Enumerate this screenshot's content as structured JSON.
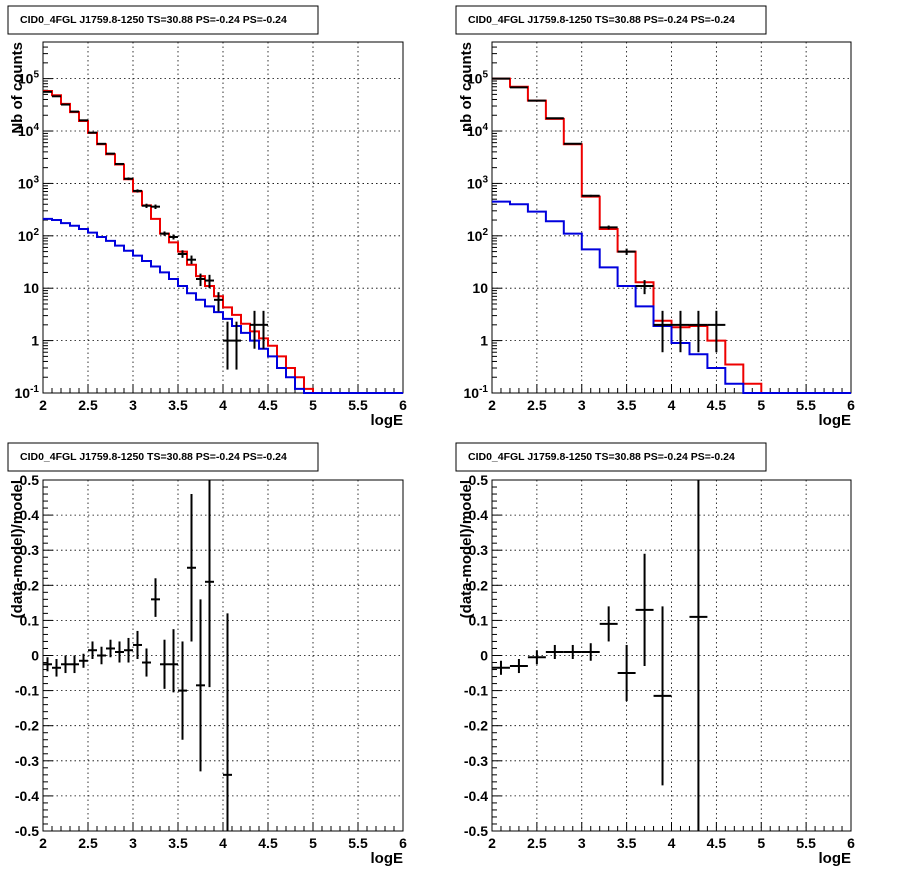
{
  "colors": {
    "data": "#000000",
    "total_model": "#ee0000",
    "component_model": "#0000dd"
  },
  "chart_data": [
    {
      "type": "histogram",
      "title": "CID0_4FGL J1759.8-1250 TS=30.88 PS=-0.24 PS=-0.24",
      "xlabel": "logE",
      "ylabel": "Nb of counts",
      "xlim": [
        2,
        6
      ],
      "ylim": [
        0.1,
        500000
      ],
      "yscale": "log",
      "grid": true,
      "xticks": [
        2,
        2.5,
        3,
        3.5,
        4,
        4.5,
        5,
        5.5,
        6
      ],
      "xticklabels": [
        "2",
        "2.5",
        "3",
        "3.5",
        "4",
        "4.5",
        "5",
        "5.5",
        "6"
      ],
      "yticks": [
        0.1,
        1,
        10,
        100,
        1000,
        10000,
        100000
      ],
      "yticklabels": [
        "10^-1",
        "1",
        "10",
        "10^2",
        "10^3",
        "10^4",
        "10^5"
      ],
      "bin_edges": [
        2.0,
        2.1,
        2.2,
        2.3,
        2.4,
        2.5,
        2.6,
        2.7,
        2.8,
        2.9,
        3.0,
        3.1,
        3.2,
        3.3,
        3.4,
        3.5,
        3.6,
        3.7,
        3.8,
        3.9,
        4.0,
        4.1,
        4.2,
        4.3,
        4.4,
        4.5,
        4.6,
        4.7,
        4.8,
        4.9,
        5.0,
        5.1,
        5.2,
        5.3,
        5.4,
        5.5,
        5.6,
        5.7,
        5.8,
        5.9,
        6.0
      ],
      "series": [
        {
          "role": "total_model",
          "values": [
            58000,
            48000,
            33000,
            23000,
            15500,
            9200,
            5600,
            3600,
            2300,
            1200,
            700,
            380,
            210,
            110,
            75,
            50,
            28,
            17,
            11,
            7,
            4.3,
            3.1,
            2.1,
            1.5,
            1.1,
            0.8,
            0.5,
            0.3,
            0.2,
            0.12,
            0.1,
            0.1,
            0.1,
            0.1,
            0.1,
            0.1,
            0.1,
            0.1,
            0.1,
            0.1
          ]
        },
        {
          "role": "component_model",
          "values": [
            210,
            200,
            175,
            155,
            135,
            115,
            95,
            80,
            65,
            52,
            42,
            33,
            26,
            20,
            15,
            11,
            8,
            6,
            4.5,
            3.5,
            2.6,
            1.9,
            1.4,
            1.0,
            0.7,
            0.5,
            0.3,
            0.2,
            0.12,
            0.1,
            0.1,
            0.1,
            0.1,
            0.1,
            0.1,
            0.1,
            0.1,
            0.1,
            0.1,
            0.1
          ]
        }
      ],
      "points": [
        {
          "x": 2.05,
          "y": 56000,
          "ylo": 55500,
          "yhi": 56500
        },
        {
          "x": 2.15,
          "y": 46000,
          "ylo": 45500,
          "yhi": 46500
        },
        {
          "x": 2.25,
          "y": 32000,
          "ylo": 31600,
          "yhi": 32400
        },
        {
          "x": 2.35,
          "y": 23500,
          "ylo": 23200,
          "yhi": 23800
        },
        {
          "x": 2.45,
          "y": 16000,
          "ylo": 15700,
          "yhi": 16300
        },
        {
          "x": 2.55,
          "y": 9300,
          "ylo": 9100,
          "yhi": 9500
        },
        {
          "x": 2.65,
          "y": 5700,
          "ylo": 5550,
          "yhi": 5850
        },
        {
          "x": 2.75,
          "y": 3700,
          "ylo": 3580,
          "yhi": 3820
        },
        {
          "x": 2.85,
          "y": 2350,
          "ylo": 2250,
          "yhi": 2450
        },
        {
          "x": 2.95,
          "y": 1230,
          "ylo": 1160,
          "yhi": 1300
        },
        {
          "x": 3.05,
          "y": 720,
          "ylo": 670,
          "yhi": 770
        },
        {
          "x": 3.15,
          "y": 375,
          "ylo": 340,
          "yhi": 410
        },
        {
          "x": 3.25,
          "y": 360,
          "ylo": 325,
          "yhi": 395
        },
        {
          "x": 3.35,
          "y": 110,
          "ylo": 100,
          "yhi": 121
        },
        {
          "x": 3.45,
          "y": 95,
          "ylo": 85,
          "yhi": 106
        },
        {
          "x": 3.55,
          "y": 45,
          "ylo": 38,
          "yhi": 53
        },
        {
          "x": 3.65,
          "y": 35,
          "ylo": 29,
          "yhi": 42
        },
        {
          "x": 3.75,
          "y": 15,
          "ylo": 11,
          "yhi": 19
        },
        {
          "x": 3.85,
          "y": 14,
          "ylo": 10,
          "yhi": 18
        },
        {
          "x": 3.95,
          "y": 6,
          "ylo": 3.6,
          "yhi": 8.4
        },
        {
          "x": 4.05,
          "y": 1,
          "ylo": 0.28,
          "yhi": 2.3
        },
        {
          "x": 4.15,
          "y": 1,
          "ylo": 0.28,
          "yhi": 2.3
        },
        {
          "x": 4.35,
          "y": 2,
          "ylo": 0.7,
          "yhi": 3.7
        },
        {
          "x": 4.45,
          "y": 2,
          "ylo": 0.7,
          "yhi": 3.7
        }
      ],
      "point_halfwidth": 0.05
    },
    {
      "type": "histogram",
      "title": "CID0_4FGL J1759.8-1250 TS=30.88 PS=-0.24 PS=-0.24",
      "xlabel": "logE",
      "ylabel": "nb of counts",
      "xlim": [
        2,
        6
      ],
      "ylim": [
        0.1,
        500000
      ],
      "yscale": "log",
      "grid": true,
      "xticks": [
        2,
        2.5,
        3,
        3.5,
        4,
        4.5,
        5,
        5.5,
        6
      ],
      "xticklabels": [
        "2",
        "2.5",
        "3",
        "3.5",
        "4",
        "4.5",
        "5",
        "5.5",
        "6"
      ],
      "yticks": [
        0.1,
        1,
        10,
        100,
        1000,
        10000,
        100000
      ],
      "yticklabels": [
        "10^-1",
        "1",
        "10",
        "10^2",
        "10^3",
        "10^4",
        "10^5"
      ],
      "bin_edges": [
        2.0,
        2.2,
        2.4,
        2.6,
        2.8,
        3.0,
        3.2,
        3.4,
        3.6,
        3.8,
        4.0,
        4.2,
        4.4,
        4.6,
        4.8,
        5.0,
        5.2,
        5.4,
        5.6,
        5.8,
        6.0
      ],
      "series": [
        {
          "role": "total_model",
          "values": [
            100000,
            70000,
            38000,
            17000,
            5600,
            560,
            135,
            50,
            13,
            2.4,
            1.8,
            1.9,
            1.0,
            0.35,
            0.15,
            0.1,
            0.1,
            0.1,
            0.1,
            0.1
          ]
        },
        {
          "role": "component_model",
          "values": [
            450,
            400,
            290,
            190,
            110,
            55,
            25,
            11,
            4.5,
            1.9,
            0.9,
            0.55,
            0.3,
            0.15,
            0.1,
            0.1,
            0.1,
            0.1,
            0.1,
            0.1
          ]
        }
      ],
      "points": [
        {
          "x": 2.1,
          "y": 100000,
          "ylo": 99500,
          "yhi": 100500
        },
        {
          "x": 2.3,
          "y": 68000,
          "ylo": 67600,
          "yhi": 68400
        },
        {
          "x": 2.5,
          "y": 38000,
          "ylo": 37700,
          "yhi": 38300
        },
        {
          "x": 2.7,
          "y": 17500,
          "ylo": 17300,
          "yhi": 17700
        },
        {
          "x": 2.9,
          "y": 5700,
          "ylo": 5600,
          "yhi": 5800
        },
        {
          "x": 3.1,
          "y": 580,
          "ylo": 555,
          "yhi": 605
        },
        {
          "x": 3.3,
          "y": 145,
          "ylo": 133,
          "yhi": 157
        },
        {
          "x": 3.5,
          "y": 50,
          "ylo": 43,
          "yhi": 57
        },
        {
          "x": 3.7,
          "y": 11,
          "ylo": 7.7,
          "yhi": 14.3
        },
        {
          "x": 3.9,
          "y": 2,
          "ylo": 0.6,
          "yhi": 3.7
        },
        {
          "x": 4.1,
          "y": 2,
          "ylo": 0.6,
          "yhi": 3.7
        },
        {
          "x": 4.3,
          "y": 2,
          "ylo": 0.6,
          "yhi": 3.7
        },
        {
          "x": 4.5,
          "y": 2,
          "ylo": 0.6,
          "yhi": 3.7
        }
      ],
      "point_halfwidth": 0.1
    },
    {
      "type": "scatter",
      "title": "CID0_4FGL J1759.8-1250 TS=30.88 PS=-0.24 PS=-0.24",
      "xlabel": "logE",
      "ylabel": "(data-model)/model",
      "xlim": [
        2,
        6
      ],
      "ylim": [
        -0.5,
        0.5
      ],
      "yscale": "linear",
      "grid": true,
      "xticks": [
        2,
        2.5,
        3,
        3.5,
        4,
        4.5,
        5,
        5.5,
        6
      ],
      "xticklabels": [
        "2",
        "2.5",
        "3",
        "3.5",
        "4",
        "4.5",
        "5",
        "5.5",
        "6"
      ],
      "yticks": [
        -0.5,
        -0.4,
        -0.3,
        -0.2,
        -0.1,
        0,
        0.1,
        0.2,
        0.3,
        0.4,
        0.5
      ],
      "yticklabels": [
        "-0.5",
        "-0.4",
        "-0.3",
        "-0.2",
        "-0.1",
        "0",
        "0.1",
        "0.2",
        "0.3",
        "0.4",
        "0.5"
      ],
      "points": [
        {
          "x": 2.05,
          "y": -0.025,
          "ylo": -0.045,
          "yhi": -0.005
        },
        {
          "x": 2.15,
          "y": -0.035,
          "ylo": -0.06,
          "yhi": -0.01
        },
        {
          "x": 2.25,
          "y": -0.025,
          "ylo": -0.05,
          "yhi": 0.0
        },
        {
          "x": 2.35,
          "y": -0.025,
          "ylo": -0.05,
          "yhi": 0.0
        },
        {
          "x": 2.45,
          "y": -0.015,
          "ylo": -0.035,
          "yhi": 0.005
        },
        {
          "x": 2.55,
          "y": 0.015,
          "ylo": -0.01,
          "yhi": 0.04
        },
        {
          "x": 2.65,
          "y": 0.0,
          "ylo": -0.025,
          "yhi": 0.025
        },
        {
          "x": 2.75,
          "y": 0.02,
          "ylo": -0.005,
          "yhi": 0.045
        },
        {
          "x": 2.85,
          "y": 0.01,
          "ylo": -0.02,
          "yhi": 0.04
        },
        {
          "x": 2.95,
          "y": 0.015,
          "ylo": -0.02,
          "yhi": 0.05
        },
        {
          "x": 3.05,
          "y": 0.03,
          "ylo": -0.01,
          "yhi": 0.07
        },
        {
          "x": 3.15,
          "y": -0.02,
          "ylo": -0.06,
          "yhi": 0.02
        },
        {
          "x": 3.25,
          "y": 0.16,
          "ylo": 0.11,
          "yhi": 0.22
        },
        {
          "x": 3.35,
          "y": -0.025,
          "ylo": -0.095,
          "yhi": 0.045
        },
        {
          "x": 3.45,
          "y": -0.025,
          "ylo": -0.105,
          "yhi": 0.075
        },
        {
          "x": 3.55,
          "y": -0.1,
          "ylo": -0.24,
          "yhi": 0.04
        },
        {
          "x": 3.65,
          "y": 0.25,
          "ylo": 0.04,
          "yhi": 0.46
        },
        {
          "x": 3.75,
          "y": -0.085,
          "ylo": -0.33,
          "yhi": 0.16
        },
        {
          "x": 3.85,
          "y": 0.21,
          "ylo": -0.09,
          "yhi": 0.5
        },
        {
          "x": 4.05,
          "y": -0.34,
          "ylo": -0.5,
          "yhi": 0.12
        }
      ],
      "point_halfwidth": 0.05
    },
    {
      "type": "scatter",
      "title": "CID0_4FGL J1759.8-1250 TS=30.88 PS=-0.24 PS=-0.24",
      "xlabel": "logE",
      "ylabel": "(data-model)/model",
      "xlim": [
        2,
        6
      ],
      "ylim": [
        -0.5,
        0.5
      ],
      "yscale": "linear",
      "grid": true,
      "xticks": [
        2,
        2.5,
        3,
        3.5,
        4,
        4.5,
        5,
        5.5,
        6
      ],
      "xticklabels": [
        "2",
        "2.5",
        "3",
        "3.5",
        "4",
        "4.5",
        "5",
        "5.5",
        "6"
      ],
      "yticks": [
        -0.5,
        -0.4,
        -0.3,
        -0.2,
        -0.1,
        0,
        0.1,
        0.2,
        0.3,
        0.4,
        0.5
      ],
      "yticklabels": [
        "-0.5",
        "-0.4",
        "-0.3",
        "-0.2",
        "-0.1",
        "0",
        "0.1",
        "0.2",
        "0.3",
        "0.4",
        "0.5"
      ],
      "points": [
        {
          "x": 2.1,
          "y": -0.035,
          "ylo": -0.055,
          "yhi": -0.015
        },
        {
          "x": 2.3,
          "y": -0.03,
          "ylo": -0.05,
          "yhi": -0.01
        },
        {
          "x": 2.5,
          "y": -0.005,
          "ylo": -0.025,
          "yhi": 0.015
        },
        {
          "x": 2.7,
          "y": 0.01,
          "ylo": -0.01,
          "yhi": 0.03
        },
        {
          "x": 2.9,
          "y": 0.01,
          "ylo": -0.01,
          "yhi": 0.03
        },
        {
          "x": 3.1,
          "y": 0.01,
          "ylo": -0.015,
          "yhi": 0.035
        },
        {
          "x": 3.3,
          "y": 0.09,
          "ylo": 0.04,
          "yhi": 0.14
        },
        {
          "x": 3.5,
          "y": -0.05,
          "ylo": -0.13,
          "yhi": 0.03
        },
        {
          "x": 3.7,
          "y": 0.13,
          "ylo": -0.03,
          "yhi": 0.29
        },
        {
          "x": 3.9,
          "y": -0.115,
          "ylo": -0.37,
          "yhi": 0.14
        },
        {
          "x": 4.3,
          "y": 0.11,
          "ylo": -0.5,
          "yhi": 0.5
        }
      ],
      "point_halfwidth": 0.1
    }
  ]
}
